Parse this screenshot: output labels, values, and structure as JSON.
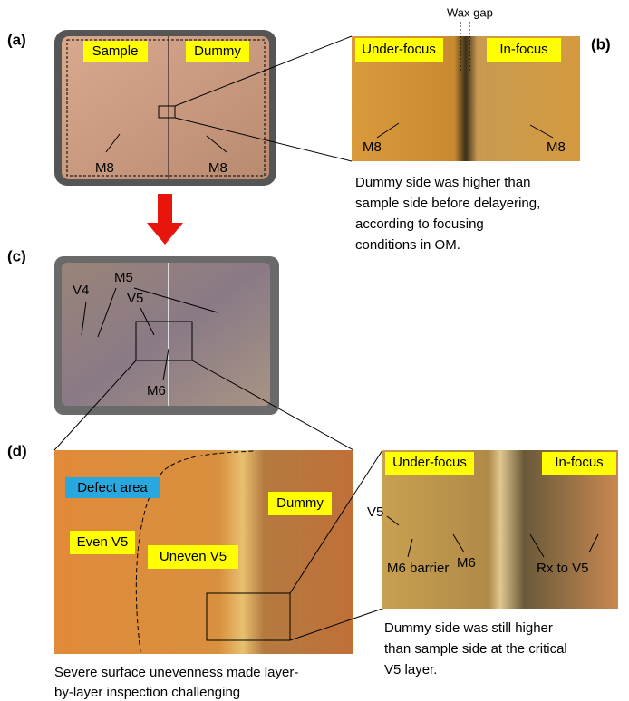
{
  "panels": {
    "a": {
      "label": "(a)",
      "tags": [
        "Sample",
        "Dummy"
      ],
      "annotations": [
        "M8",
        "M8"
      ]
    },
    "b": {
      "label": "(b)",
      "top_label": "Wax gap",
      "tags": [
        "Under-focus",
        "In-focus"
      ],
      "annotations": [
        "M8",
        "M8"
      ],
      "caption": [
        "Dummy side was higher than",
        "sample side before delayering,",
        "according to focusing",
        "conditions in OM."
      ]
    },
    "c": {
      "label": "(c)",
      "annotations": [
        "V4",
        "M5",
        "V5",
        "M6"
      ]
    },
    "d": {
      "label": "(d)",
      "tags": [
        "Defect area",
        "Dummy",
        "Even V5",
        "Uneven V5"
      ],
      "caption": [
        "Severe surface unevenness made layer-",
        "by-layer inspection challenging"
      ]
    },
    "e": {
      "tags": [
        "Under-focus",
        "In-focus"
      ],
      "annotations": [
        "V5",
        "M6 barrier",
        "M6",
        "Rx to V5"
      ],
      "caption": [
        "Dummy side was still higher",
        "than sample side at the critical",
        "V5 layer."
      ]
    }
  }
}
